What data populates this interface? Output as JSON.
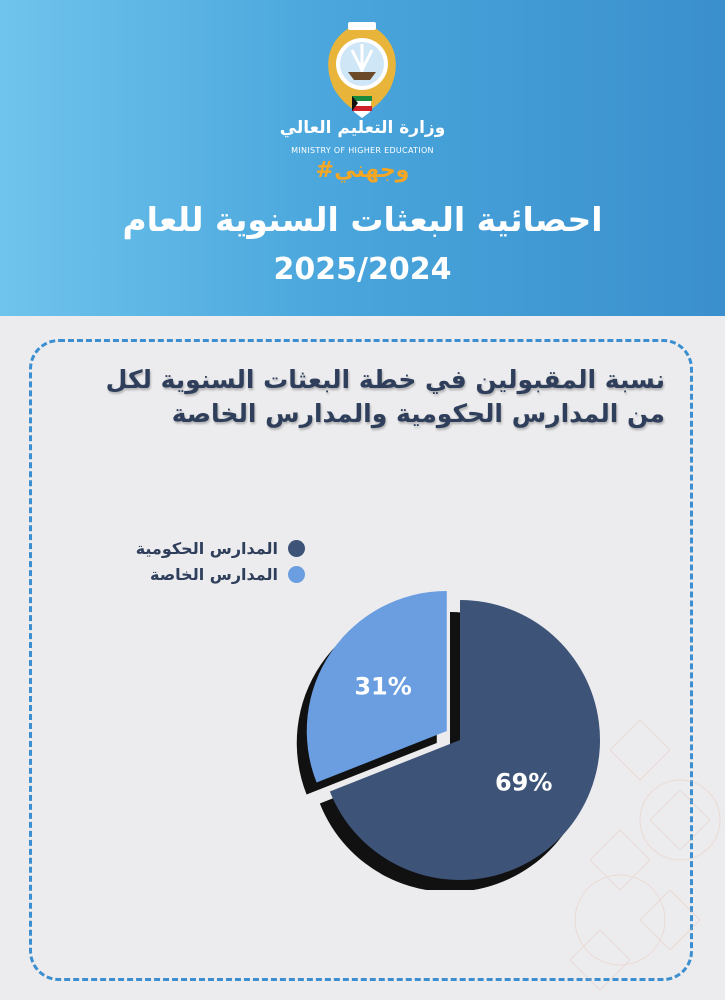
{
  "header": {
    "ministry_ar": "وزارة التعليم العالي",
    "ministry_en": "MINISTRY OF HIGHER EDUCATION",
    "hashtag": "#وجهني",
    "title": "احصائية البعثات السنوية للعام",
    "year": "2025/2024"
  },
  "colors": {
    "government": "#3d5478",
    "private": "#6a9ee0",
    "accent": "#f5a623",
    "border": "#3b8fd0"
  },
  "chart_data": {
    "type": "pie",
    "title": "نسبة المقبولين  في خطة البعثات السنوية لكل من المدارس الحكومية والمدارس الخاصة",
    "title_line1": "نسبة المقبولين  في خطة البعثات السنوية لكل",
    "title_line2": "من المدارس الحكومية والمدارس الخاصة",
    "categories": [
      "المدارس الحكومية",
      "المدارس الخاصة"
    ],
    "values": [
      69,
      31
    ],
    "labels": [
      "69%",
      "31%"
    ],
    "legend_position": "top-left"
  }
}
